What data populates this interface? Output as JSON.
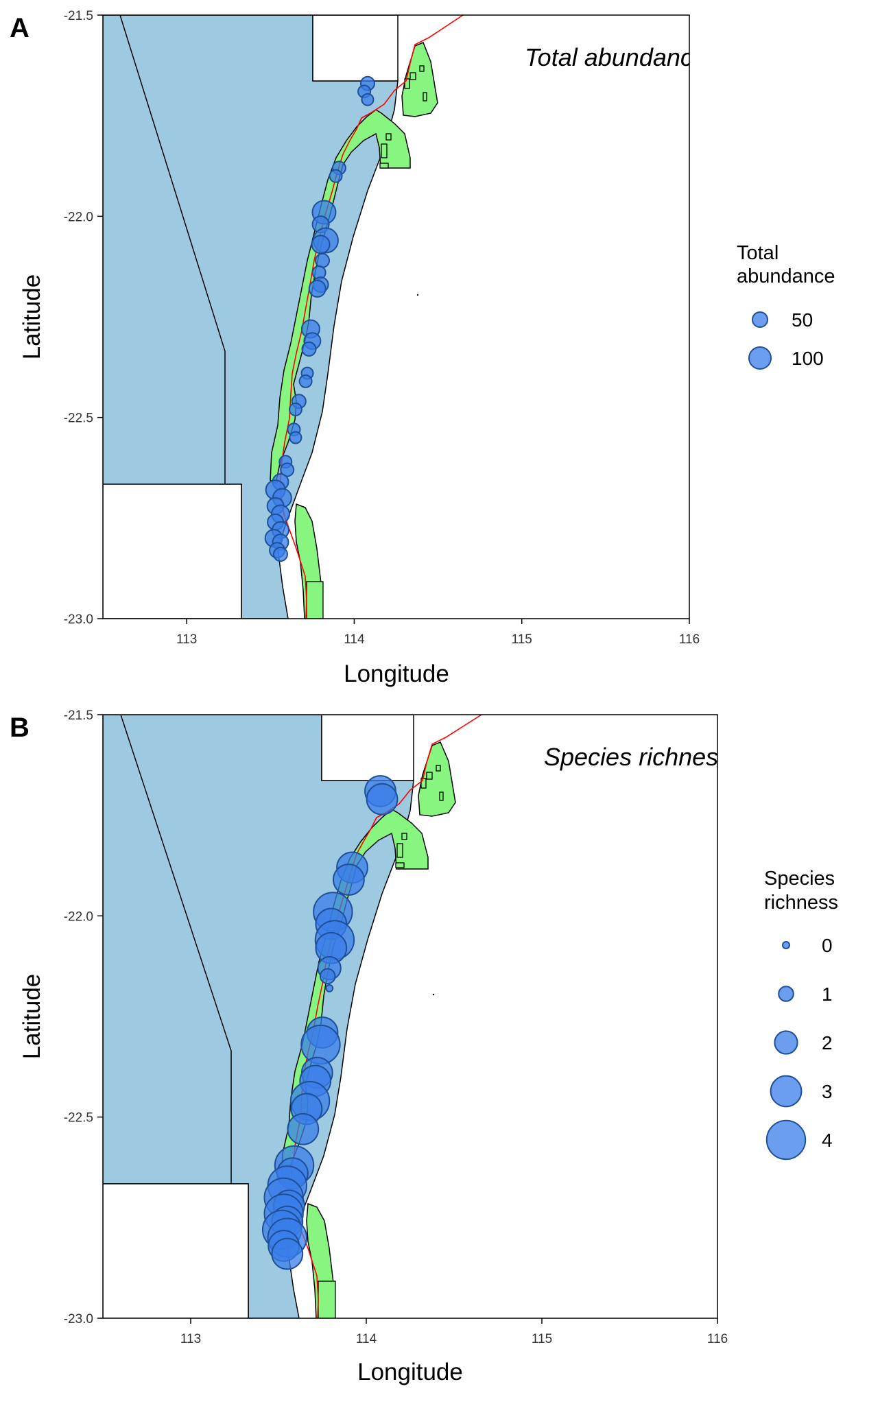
{
  "figure": {
    "panels": [
      {
        "letter": "A",
        "annotation": "Total abundance",
        "xlabel": "Longitude",
        "ylabel": "Latitude",
        "xticks": [
          "113",
          "114",
          "115",
          "116"
        ],
        "yticks": [
          "-21.5",
          "-22.0",
          "-22.5",
          "-23.0"
        ],
        "legend": {
          "title_line1": "Total",
          "title_line2": "abundance",
          "entries": [
            {
              "label": "50",
              "value": 50
            },
            {
              "label": "100",
              "value": 100
            }
          ]
        }
      },
      {
        "letter": "B",
        "annotation": "Species richness",
        "xlabel": "Longitude",
        "ylabel": "Latitude",
        "xticks": [
          "113",
          "114",
          "115",
          "116"
        ],
        "yticks": [
          "-21.5",
          "-22.0",
          "-22.5",
          "-23.0"
        ],
        "legend": {
          "title_line1": "Species",
          "title_line2": "richness",
          "entries": [
            {
              "label": "0",
              "value": 0
            },
            {
              "label": "1",
              "value": 1
            },
            {
              "label": "2",
              "value": 2
            },
            {
              "label": "3",
              "value": 3
            },
            {
              "label": "4",
              "value": 4
            }
          ]
        }
      }
    ]
  },
  "chart_data": [
    {
      "type": "scatter",
      "panel": "A",
      "annotation": "Total abundance",
      "xlabel": "Longitude",
      "ylabel": "Latitude",
      "xlim": [
        112.5,
        116.0
      ],
      "ylim": [
        -23.0,
        -21.5
      ],
      "xticks": [
        113,
        114,
        115,
        116
      ],
      "yticks": [
        -21.5,
        -22.0,
        -22.5,
        -23.0
      ],
      "colors": {
        "point_fill": "#3a7ee8",
        "point_stroke": "#1f4f99",
        "sea": "#9ecae1",
        "reserve": "#88f580",
        "coastline": "#ff0000"
      },
      "legend_title": "Total abundance",
      "legend_values": [
        50,
        100
      ],
      "points": [
        {
          "x": 114.08,
          "y": -21.67,
          "v": 40
        },
        {
          "x": 114.06,
          "y": -21.69,
          "v": 30
        },
        {
          "x": 114.08,
          "y": -21.71,
          "v": 25
        },
        {
          "x": 113.91,
          "y": -21.88,
          "v": 35
        },
        {
          "x": 113.89,
          "y": -21.9,
          "v": 30
        },
        {
          "x": 113.82,
          "y": -21.99,
          "v": 110
        },
        {
          "x": 113.8,
          "y": -22.02,
          "v": 60
        },
        {
          "x": 113.83,
          "y": -22.06,
          "v": 120
        },
        {
          "x": 113.8,
          "y": -22.07,
          "v": 70
        },
        {
          "x": 113.81,
          "y": -22.11,
          "v": 40
        },
        {
          "x": 113.79,
          "y": -22.14,
          "v": 35
        },
        {
          "x": 113.8,
          "y": -22.17,
          "v": 50
        },
        {
          "x": 113.78,
          "y": -22.18,
          "v": 60
        },
        {
          "x": 113.74,
          "y": -22.28,
          "v": 70
        },
        {
          "x": 113.75,
          "y": -22.31,
          "v": 60
        },
        {
          "x": 113.73,
          "y": -22.33,
          "v": 40
        },
        {
          "x": 113.72,
          "y": -22.39,
          "v": 25
        },
        {
          "x": 113.71,
          "y": -22.41,
          "v": 30
        },
        {
          "x": 113.67,
          "y": -22.46,
          "v": 40
        },
        {
          "x": 113.65,
          "y": -22.48,
          "v": 30
        },
        {
          "x": 113.64,
          "y": -22.53,
          "v": 30
        },
        {
          "x": 113.65,
          "y": -22.55,
          "v": 25
        },
        {
          "x": 113.59,
          "y": -22.61,
          "v": 30
        },
        {
          "x": 113.6,
          "y": -22.63,
          "v": 35
        },
        {
          "x": 113.56,
          "y": -22.66,
          "v": 55
        },
        {
          "x": 113.53,
          "y": -22.68,
          "v": 80
        },
        {
          "x": 113.57,
          "y": -22.7,
          "v": 75
        },
        {
          "x": 113.53,
          "y": -22.72,
          "v": 60
        },
        {
          "x": 113.56,
          "y": -22.74,
          "v": 70
        },
        {
          "x": 113.53,
          "y": -22.76,
          "v": 55
        },
        {
          "x": 113.56,
          "y": -22.78,
          "v": 60
        },
        {
          "x": 113.52,
          "y": -22.8,
          "v": 65
        },
        {
          "x": 113.56,
          "y": -22.81,
          "v": 55
        },
        {
          "x": 113.54,
          "y": -22.83,
          "v": 50
        },
        {
          "x": 113.56,
          "y": -22.84,
          "v": 40
        }
      ]
    },
    {
      "type": "scatter",
      "panel": "B",
      "annotation": "Species richness",
      "xlabel": "Longitude",
      "ylabel": "Latitude",
      "xlim": [
        112.5,
        116.0
      ],
      "ylim": [
        -23.0,
        -21.5
      ],
      "xticks": [
        113,
        114,
        115,
        116
      ],
      "yticks": [
        -21.5,
        -22.0,
        -22.5,
        -23.0
      ],
      "colors": {
        "point_fill": "#3a7ee8",
        "point_stroke": "#1f4f99",
        "sea": "#9ecae1",
        "reserve": "#88f580",
        "coastline": "#ff0000"
      },
      "legend_title": "Species richness",
      "legend_values": [
        0,
        1,
        2,
        3,
        4
      ],
      "points": [
        {
          "x": 114.08,
          "y": -21.69,
          "v": 3
        },
        {
          "x": 114.09,
          "y": -21.71,
          "v": 3
        },
        {
          "x": 113.92,
          "y": -21.88,
          "v": 3
        },
        {
          "x": 113.9,
          "y": -21.91,
          "v": 3
        },
        {
          "x": 113.81,
          "y": -21.99,
          "v": 4
        },
        {
          "x": 113.8,
          "y": -22.02,
          "v": 3
        },
        {
          "x": 113.82,
          "y": -22.06,
          "v": 4
        },
        {
          "x": 113.8,
          "y": -22.08,
          "v": 3
        },
        {
          "x": 113.79,
          "y": -22.13,
          "v": 2
        },
        {
          "x": 113.78,
          "y": -22.15,
          "v": 1
        },
        {
          "x": 113.79,
          "y": -22.18,
          "v": 0
        },
        {
          "x": 113.75,
          "y": -22.29,
          "v": 3
        },
        {
          "x": 113.74,
          "y": -22.32,
          "v": 4
        },
        {
          "x": 113.72,
          "y": -22.39,
          "v": 3
        },
        {
          "x": 113.71,
          "y": -22.41,
          "v": 3
        },
        {
          "x": 113.68,
          "y": -22.46,
          "v": 4
        },
        {
          "x": 113.66,
          "y": -22.48,
          "v": 3
        },
        {
          "x": 113.64,
          "y": -22.53,
          "v": 3
        },
        {
          "x": 113.59,
          "y": -22.62,
          "v": 4
        },
        {
          "x": 113.58,
          "y": -22.64,
          "v": 3
        },
        {
          "x": 113.55,
          "y": -22.67,
          "v": 4
        },
        {
          "x": 113.53,
          "y": -22.7,
          "v": 4
        },
        {
          "x": 113.56,
          "y": -22.72,
          "v": 3
        },
        {
          "x": 113.53,
          "y": -22.74,
          "v": 4
        },
        {
          "x": 113.55,
          "y": -22.76,
          "v": 3
        },
        {
          "x": 113.52,
          "y": -22.78,
          "v": 4
        },
        {
          "x": 113.55,
          "y": -22.8,
          "v": 4
        },
        {
          "x": 113.53,
          "y": -22.82,
          "v": 3
        },
        {
          "x": 113.55,
          "y": -22.84,
          "v": 3
        }
      ]
    }
  ]
}
